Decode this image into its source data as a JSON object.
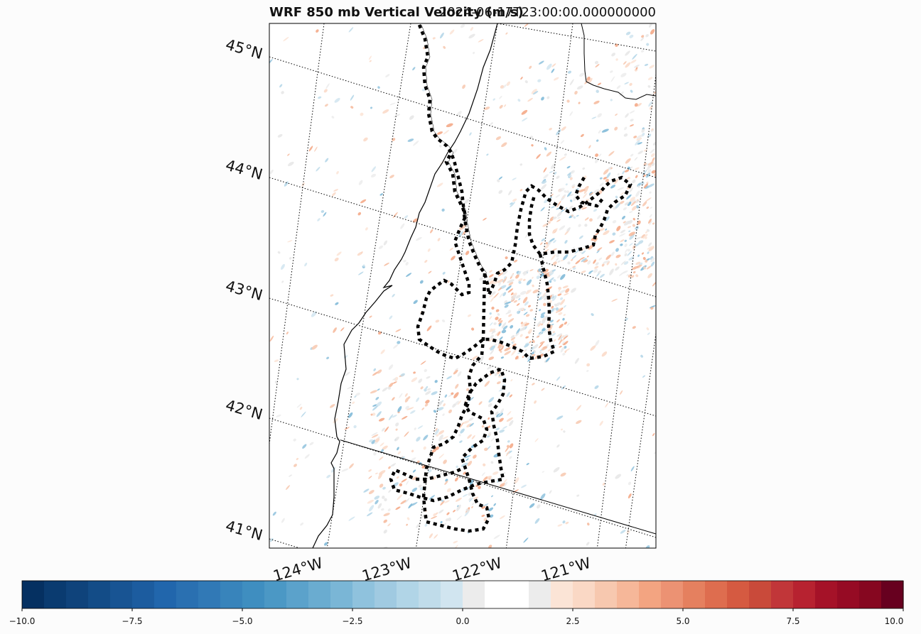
{
  "title": {
    "left": "WRF 850 mb Vertical Velocity (m/s)",
    "right": "2024-06-17T23:00:00.000000000"
  },
  "map": {
    "lat_labels": [
      "45°N",
      "44°N",
      "43°N",
      "42°N",
      "41°N"
    ],
    "lon_labels": [
      "124°W",
      "123°W",
      "122°W",
      "121°W"
    ],
    "features": [
      "coastline",
      "state-borders",
      "graticule",
      "flight-track"
    ]
  },
  "colorbar": {
    "cmap": "RdBu_r",
    "min": -10.0,
    "max": 10.0,
    "tick_labels": [
      "−10.0",
      "−7.5",
      "−5.0",
      "−2.5",
      "0.0",
      "2.5",
      "5.0",
      "7.5",
      "10.0"
    ],
    "colors": [
      "#053061",
      "#0a3b70",
      "#0f437b",
      "#134c87",
      "#185493",
      "#1c5c9f",
      "#2166ac",
      "#2a70b1",
      "#3179b6",
      "#3884bb",
      "#3f8ec0",
      "#4b98c5",
      "#5ba2cb",
      "#6aacd0",
      "#7ab6d6",
      "#8fc2dd",
      "#a0cae1",
      "#b1d5e7",
      "#c0dcea",
      "#d1e5f0",
      "#ececec",
      "#ffffff",
      "#ffffff",
      "#ececec",
      "#fbe4d6",
      "#fad8c5",
      "#f7c8af",
      "#f6b799",
      "#f3a481",
      "#ec9273",
      "#e5805f",
      "#de6d4f",
      "#d55a41",
      "#c94a3a",
      "#c13639",
      "#b72230",
      "#a51228",
      "#960b24",
      "#860720",
      "#67001f"
    ]
  }
}
